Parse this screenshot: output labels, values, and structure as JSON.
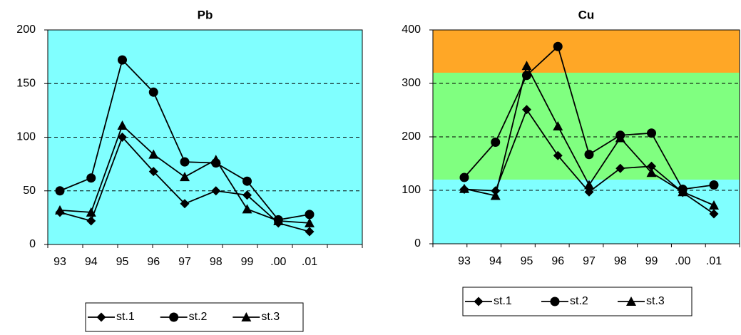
{
  "chart_data": [
    {
      "type": "line",
      "title": "Pb",
      "categories": [
        "93",
        "94",
        "95",
        "96",
        "97",
        "98",
        "99",
        ".00",
        ".01"
      ],
      "series": [
        {
          "name": "st.1",
          "color": "#000000",
          "marker": "diamond",
          "values": [
            30,
            22,
            100,
            68,
            38,
            50,
            46,
            20,
            12
          ]
        },
        {
          "name": "st.2",
          "color": "#000000",
          "marker": "circle",
          "values": [
            50,
            62,
            172,
            142,
            77,
            76,
            59,
            23,
            28
          ]
        },
        {
          "name": "st.3",
          "color": "#000000",
          "marker": "triangle",
          "values": [
            32,
            30,
            111,
            84,
            63,
            79,
            33,
            22,
            20
          ]
        }
      ],
      "ylim": [
        0,
        200
      ],
      "yticks": [
        0,
        50,
        100,
        150,
        200
      ],
      "grid": true,
      "bands": [
        {
          "from": 0,
          "to": 200,
          "color": "#80ffff"
        }
      ],
      "legend": "bottom"
    },
    {
      "type": "line",
      "title": "Cu",
      "categories": [
        "93",
        "94",
        "95",
        "96",
        "97",
        "98",
        "99",
        ".00",
        ".01"
      ],
      "series": [
        {
          "name": "st.1",
          "color": "#000000",
          "marker": "diamond",
          "values": [
            102,
            99,
            251,
            165,
            97,
            141,
            145,
            96,
            56
          ]
        },
        {
          "name": "st.2",
          "color": "#000000",
          "marker": "circle",
          "values": [
            124,
            190,
            315,
            369,
            167,
            203,
            207,
            102,
            110
          ]
        },
        {
          "name": "st.3",
          "color": "#000000",
          "marker": "triangle",
          "values": [
            103,
            90,
            333,
            220,
            110,
            198,
            133,
            97,
            72
          ]
        }
      ],
      "ylim": [
        0,
        400
      ],
      "yticks": [
        0,
        100,
        200,
        300,
        400
      ],
      "grid": true,
      "bands": [
        {
          "from": 0,
          "to": 120,
          "color": "#80ffff"
        },
        {
          "from": 120,
          "to": 320,
          "color": "#80ff80"
        },
        {
          "from": 320,
          "to": 400,
          "color": "#ffa726"
        }
      ],
      "legend": "bottom"
    }
  ]
}
